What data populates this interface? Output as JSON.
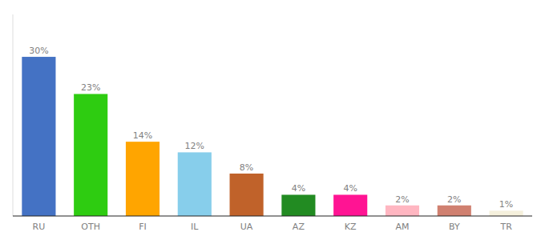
{
  "chart_data": {
    "type": "bar",
    "categories": [
      "RU",
      "OTH",
      "FI",
      "IL",
      "UA",
      "AZ",
      "KZ",
      "AM",
      "BY",
      "TR"
    ],
    "values": [
      30,
      23,
      14,
      12,
      8,
      4,
      4,
      2,
      2,
      1
    ],
    "value_labels": [
      "30%",
      "23%",
      "14%",
      "12%",
      "8%",
      "4%",
      "4%",
      "2%",
      "2%",
      "1%"
    ],
    "colors": [
      "#4472C4",
      "#2ECC11",
      "#FFA500",
      "#87CEEB",
      "#C0622A",
      "#228B22",
      "#FF1493",
      "#FFB6C1",
      "#D08070",
      "#F5F0DC"
    ],
    "ylim": [
      0,
      38
    ],
    "data_labels": true,
    "tick_labels": "x",
    "grid": false
  }
}
